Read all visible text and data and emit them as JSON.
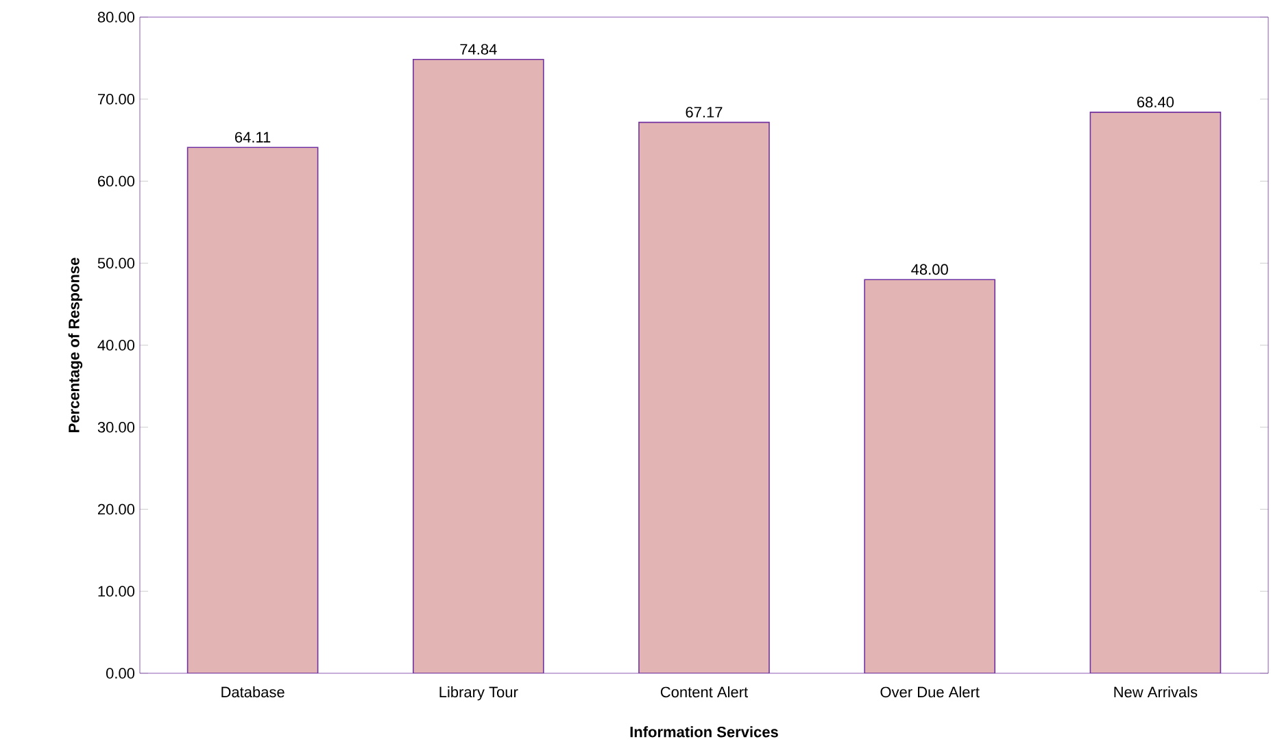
{
  "chart_data": {
    "type": "bar",
    "xlabel": "Information Services",
    "ylabel": "Percentage of Response",
    "categories": [
      "Database",
      "Library Tour",
      "Content Alert",
      "Over Due Alert",
      "New Arrivals"
    ],
    "values": [
      64.11,
      74.84,
      67.17,
      48.0,
      68.4
    ],
    "value_labels": [
      "64.11",
      "74.84",
      "67.17",
      "48.00",
      "68.40"
    ],
    "color": "#e2b4b4",
    "ylim": [
      0,
      80
    ],
    "yticks": [
      {
        "value": 0,
        "label": "0.00"
      },
      {
        "value": 10,
        "label": "10.00"
      },
      {
        "value": 20,
        "label": "20.00"
      },
      {
        "value": 30,
        "label": "30.00"
      },
      {
        "value": 40,
        "label": "40.00"
      },
      {
        "value": 50,
        "label": "50.00"
      },
      {
        "value": 60,
        "label": "60.00"
      },
      {
        "value": 70,
        "label": "70.00"
      },
      {
        "value": 80,
        "label": "80.00"
      }
    ],
    "grid": false
  }
}
